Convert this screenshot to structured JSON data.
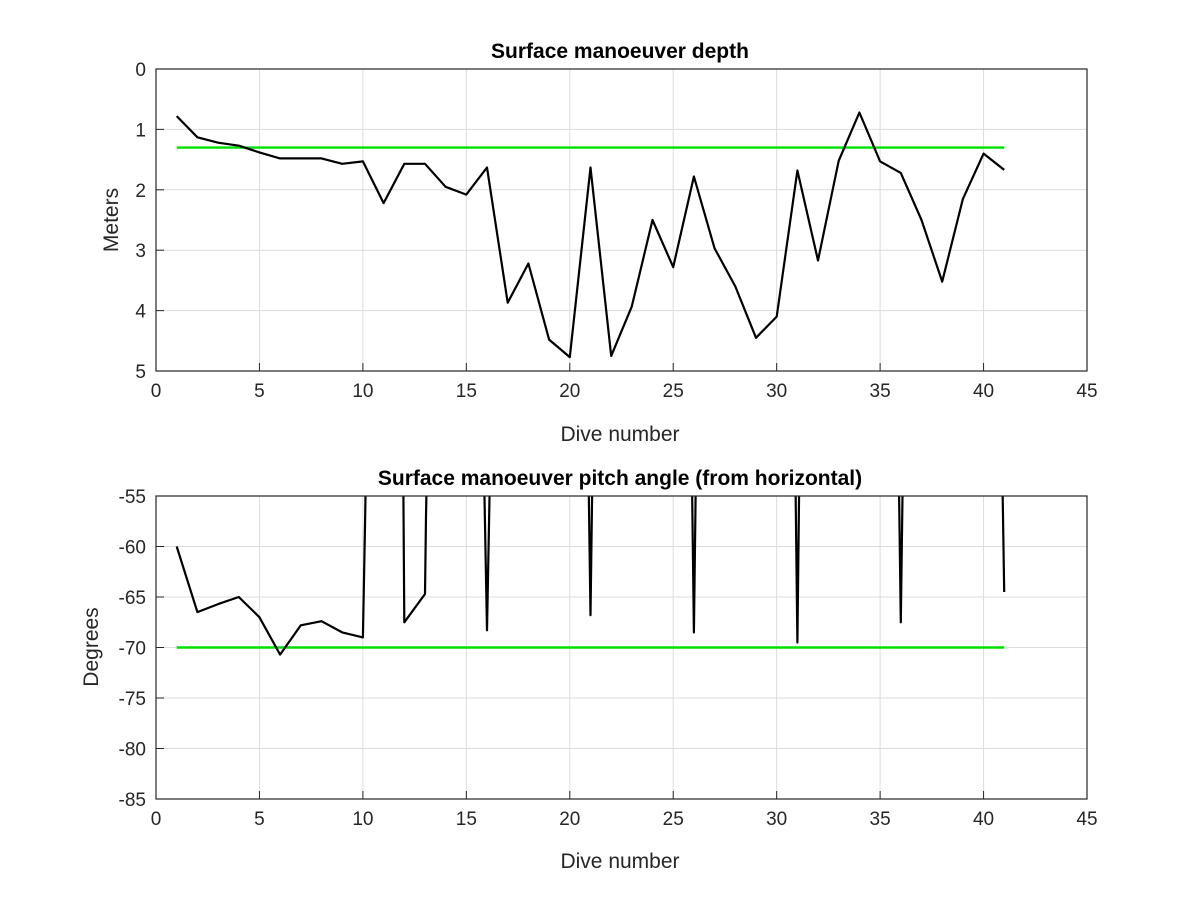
{
  "chart_data": [
    {
      "type": "line",
      "title": "Surface manoeuver depth",
      "xlabel": "Dive number",
      "ylabel": "Meters",
      "xlim": [
        0,
        45
      ],
      "ylim": [
        0,
        5
      ],
      "y_reversed": true,
      "grid": true,
      "xticks": [
        "0",
        "5",
        "10",
        "15",
        "20",
        "25",
        "30",
        "35",
        "40",
        "45"
      ],
      "yticks": [
        "0",
        "1",
        "2",
        "3",
        "4",
        "5"
      ],
      "x": [
        1,
        2,
        3,
        4,
        5,
        6,
        7,
        8,
        9,
        10,
        11,
        12,
        13,
        14,
        15,
        16,
        17,
        18,
        19,
        20,
        21,
        22,
        23,
        24,
        25,
        26,
        27,
        28,
        29,
        30,
        31,
        32,
        33,
        34,
        35,
        36,
        37,
        38,
        39,
        40,
        41
      ],
      "series": [
        {
          "color": "#000000",
          "values": [
            0.78,
            1.13,
            1.22,
            1.27,
            1.38,
            1.48,
            1.48,
            1.48,
            1.57,
            1.53,
            2.22,
            1.57,
            1.57,
            1.95,
            2.08,
            1.63,
            3.87,
            3.22,
            4.48,
            4.77,
            1.63,
            4.75,
            3.93,
            2.5,
            3.28,
            1.78,
            2.97,
            3.6,
            4.45,
            4.1,
            1.68,
            3.17,
            1.52,
            0.72,
            1.53,
            1.72,
            2.5,
            3.52,
            2.15,
            1.4,
            1.67
          ]
        }
      ],
      "reference_line": {
        "color": "#00e000",
        "x": [
          1,
          41
        ],
        "y": 1.3
      }
    },
    {
      "type": "line",
      "title": "Surface manoeuver pitch angle (from horizontal)",
      "xlabel": "Dive number",
      "ylabel": "Degrees",
      "xlim": [
        0,
        45
      ],
      "ylim": [
        -85,
        -55
      ],
      "grid": true,
      "xticks": [
        "0",
        "5",
        "10",
        "15",
        "20",
        "25",
        "30",
        "35",
        "40",
        "45"
      ],
      "yticks": [
        "-55",
        "-60",
        "-65",
        "-70",
        "-75",
        "-80",
        "-85"
      ],
      "series": [
        {
          "color": "#000000",
          "x": [
            1,
            2,
            3,
            4,
            5,
            6,
            7,
            8,
            9,
            10,
            10.1,
            10.15,
            11.95,
            12,
            13,
            13.05,
            13.1,
            15.85,
            16,
            16.15,
            20.9,
            21,
            21.1,
            25.9,
            26,
            26.1,
            30.9,
            31,
            31.1,
            35.9,
            36,
            36.1,
            40.9,
            41
          ],
          "y": [
            -60,
            -66.5,
            -65.7,
            -65,
            -67,
            -70.7,
            -67.8,
            -67.4,
            -68.5,
            -69,
            -58,
            -52,
            -52,
            -67.5,
            -64.7,
            -57,
            -52,
            -52,
            -68.3,
            -52,
            -52,
            -66.8,
            -52,
            -52,
            -68.5,
            -52,
            -52,
            -69.5,
            -52,
            -52,
            -67.5,
            -52,
            -52,
            -64.5
          ]
        }
      ],
      "reference_line": {
        "color": "#00e000",
        "x": [
          1,
          41
        ],
        "y": -70
      }
    }
  ]
}
